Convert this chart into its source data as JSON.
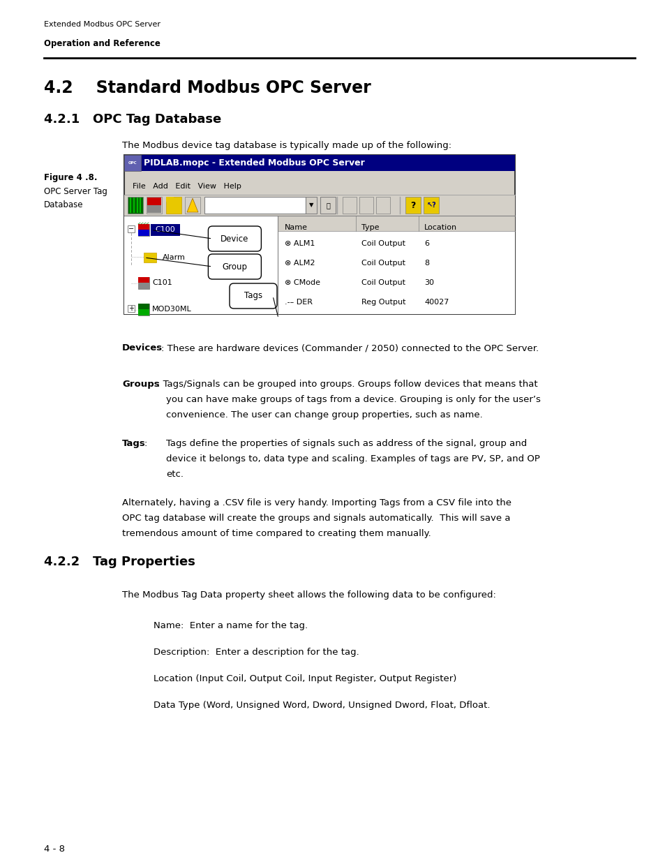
{
  "header_small": "Extended Modbus OPC Server",
  "header_bold": "Operation and Reference",
  "section_42": "4.2    Standard Modbus OPC Server",
  "section_421": "4.2.1   OPC Tag Database",
  "intro_text": "The Modbus device tag database is typically made up of the following:",
  "figure_label": "Figure 4 .8.",
  "figure_sublabel1": "OPC Server Tag",
  "figure_sublabel2": "Database",
  "window_title": "PIDLAB.mopc - Extended Modbus OPC Server",
  "menu_items": [
    "File",
    "Add",
    "Edit",
    "View",
    "Help"
  ],
  "col_headers": [
    "Name",
    "Type",
    "Location"
  ],
  "table_rows": [
    [
      "⊗ ALM1",
      "Coil Output",
      "6"
    ],
    [
      "⊗ ALM2",
      "Coil Output",
      "8"
    ],
    [
      "⊗ CMode",
      "Coil Output",
      "30"
    ],
    [
      ".-– DER",
      "Reg Output",
      "40027"
    ]
  ],
  "bubble_labels": [
    "Device",
    "Group",
    "Tags"
  ],
  "devices_label": "Devices",
  "devices_text": ": These are hardware devices (Commander / 2050) connected to the OPC Server.",
  "groups_label": "Groups",
  "groups_line1": ": Tags/Signals can be grouped into groups. Groups follow devices that means that",
  "groups_line2": "you can have make groups of tags from a device. Grouping is only for the user’s",
  "groups_line3": "convenience. The user can change group properties, such as name.",
  "tags_label": "Tags",
  "tags_line1": "Tags define the properties of signals such as address of the signal, group and",
  "tags_line2": "device it belongs to, data type and scaling. Examples of tags are PV, SP, and OP",
  "tags_line3": "etc.",
  "alt_line1": "Alternately, having a .CSV file is very handy. Importing Tags from a CSV file into the",
  "alt_line2": "OPC tag database will create the groups and signals automatically.  This will save a",
  "alt_line3": "tremendous amount of time compared to creating them manually.",
  "section_422": "4.2.2   Tag Properties",
  "tag_intro": "The Modbus Tag Data property sheet allows the following data to be configured:",
  "tag_items": [
    "Name:  Enter a name for the tag.",
    "Description:  Enter a description for the tag.",
    "Location (Input Coil, Output Coil, Input Register, Output Register)",
    "Data Type (Word, Unsigned Word, Dword, Unsigned Dword, Float, Dfloat."
  ],
  "footer": "4 - 8",
  "bg_color": "#ffffff",
  "text_color": "#000000",
  "title_bar_color": "#000080",
  "title_bar_text_color": "#ffffff",
  "win_bg": "#d4d0c8",
  "white": "#ffffff",
  "gray_border": "#808080"
}
